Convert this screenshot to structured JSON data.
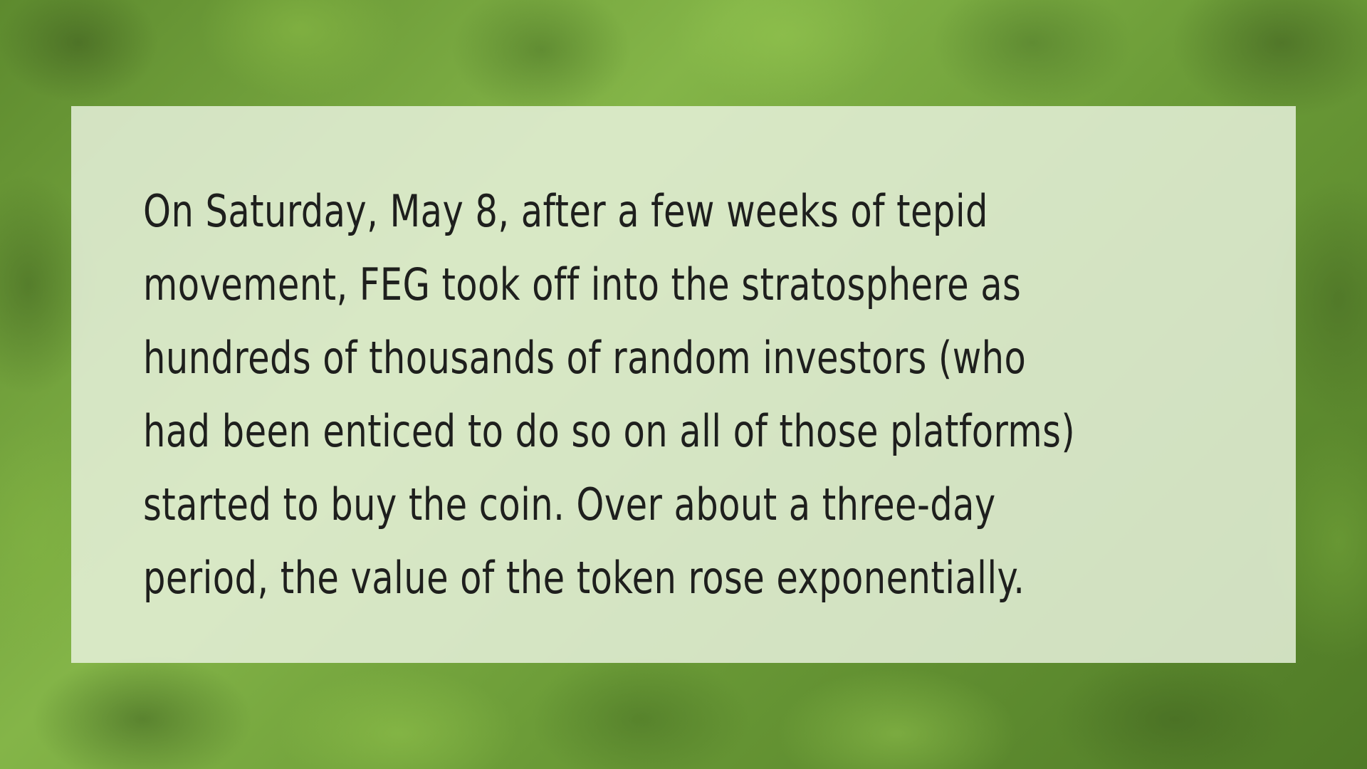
{
  "slide": {
    "lines": [
      "On Saturday, May 8, after a few weeks of tepid",
      "movement, FEG took off into the stratosphere as",
      "hundreds of thousands of random investors (who",
      "had been enticed to do so on all of those platforms)",
      "started to buy the coin. Over about a three-day",
      "period, the value of the token rose exponentially."
    ]
  },
  "colors": {
    "background_green": "#6e9a3a",
    "panel": "#e8f2de",
    "text": "#1e1f1d"
  }
}
